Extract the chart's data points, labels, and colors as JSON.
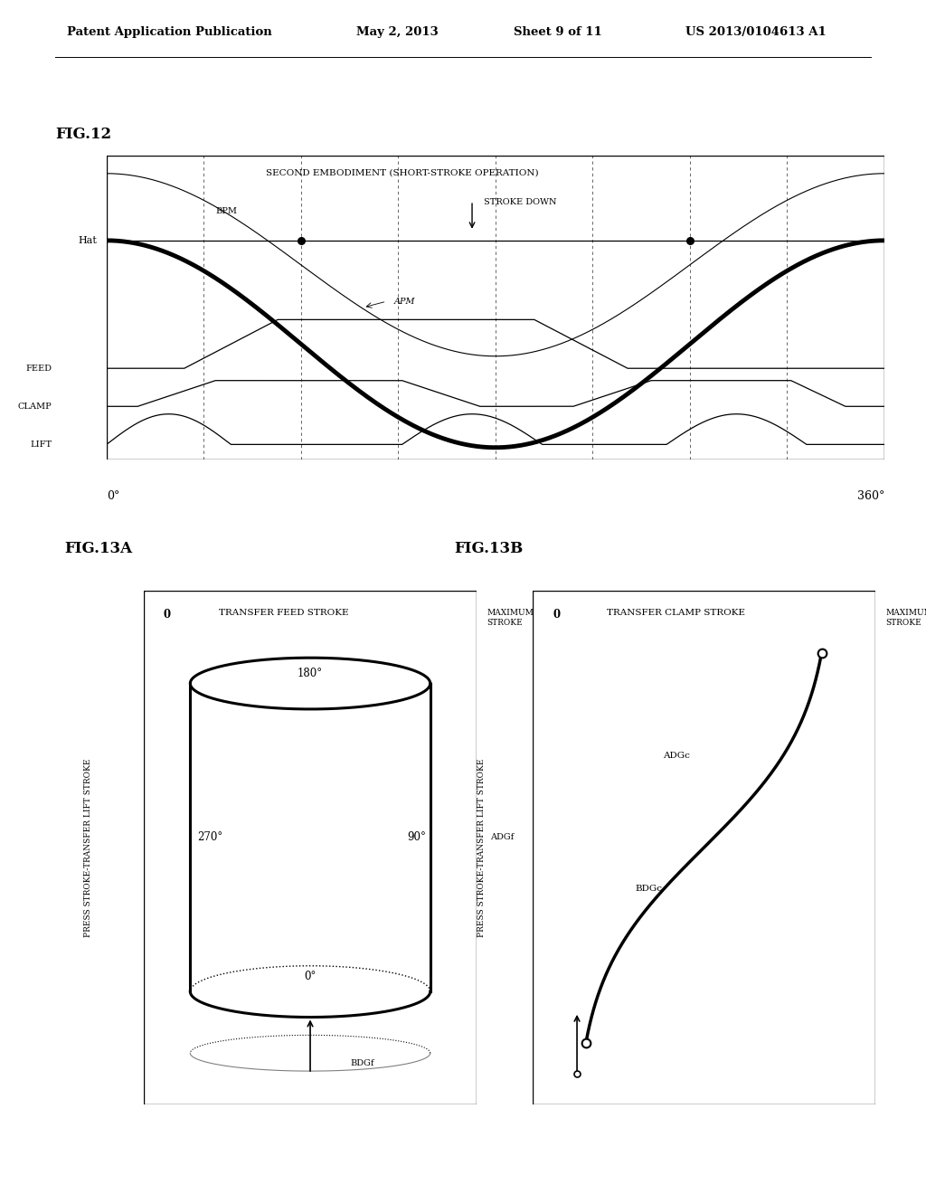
{
  "header_text": "Patent Application Publication",
  "header_date": "May 2, 2013",
  "header_sheet": "Sheet 9 of 11",
  "header_patent": "US 2013/0104613 A1",
  "fig12_title": "FIG.12",
  "fig12_subtitle": "SECOND EMBODIMENT (SHORT-STROKE OPERATION)",
  "fig12_label_0": "0°",
  "fig12_label_360": "360°",
  "fig12_label_hat": "Hat",
  "fig12_label_bpm": "BPM",
  "fig12_label_apm": "APM",
  "fig12_label_feed": "FEED",
  "fig12_label_clamp": "CLAMP",
  "fig12_label_lift": "LIFT",
  "fig12_label_stroke_down": "STROKE DOWN",
  "fig13a_title": "FIG.13A",
  "fig13a_label_top": "TRANSFER FEED STROKE",
  "fig13a_label_max": "MAXIMUM\nSTROKE",
  "fig13a_label_0": "0",
  "fig13a_label_180": "180°",
  "fig13a_label_270": "270°",
  "fig13a_label_90": "90°",
  "fig13a_label_0deg": "0°",
  "fig13a_label_adgf": "ADGf",
  "fig13a_label_bdgf": "BDGf",
  "fig13a_ylabel": "PRESS STROKE-TRANSFER LIFT STROKE",
  "fig13b_title": "FIG.13B",
  "fig13b_label_top": "TRANSFER CLAMP STROKE",
  "fig13b_label_max": "MAXIMUM\nSTROKE",
  "fig13b_label_0": "0",
  "fig13b_label_adgc": "ADGc",
  "fig13b_label_bdgc": "BDGc",
  "fig13b_ylabel": "PRESS STROKE-TRANSFER LIFT STROKE",
  "bg_color": "#ffffff",
  "line_color": "#000000"
}
